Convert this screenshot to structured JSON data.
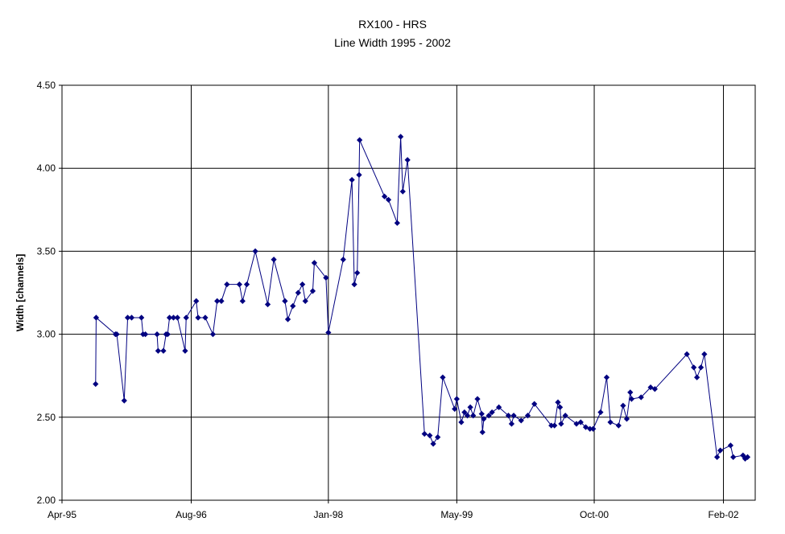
{
  "chart_data": {
    "type": "line",
    "title": "RX100 - HRS",
    "subtitle": "Line Width 1995 - 2002",
    "xlabel": "",
    "ylabel": "Width [channels]",
    "ylim": [
      2.0,
      4.5
    ],
    "yticks": [
      "2.00",
      "2.50",
      "3.00",
      "3.50",
      "4.00",
      "4.50"
    ],
    "xlim": [
      "1995-04-01",
      "2002-06-01"
    ],
    "xticks": [
      {
        "date": "1995-04-01",
        "label": "Apr-95"
      },
      {
        "date": "1996-08-01",
        "label": "Aug-96"
      },
      {
        "date": "1998-01-01",
        "label": "Jan-98"
      },
      {
        "date": "1999-05-01",
        "label": "May-99"
      },
      {
        "date": "2000-10-01",
        "label": "Oct-00"
      },
      {
        "date": "2002-02-01",
        "label": "Feb-02"
      }
    ],
    "grid": true,
    "legend": "none",
    "series_color": "#000080",
    "marker": "diamond",
    "points": [
      [
        "1995-08-06",
        2.7
      ],
      [
        "1995-08-08",
        3.1
      ],
      [
        "1995-10-20",
        3.0
      ],
      [
        "1995-10-25",
        3.0
      ],
      [
        "1995-11-22",
        2.6
      ],
      [
        "1995-12-05",
        3.1
      ],
      [
        "1995-12-20",
        3.1
      ],
      [
        "1996-01-26",
        3.1
      ],
      [
        "1996-02-01",
        3.0
      ],
      [
        "1996-02-10",
        3.0
      ],
      [
        "1996-03-25",
        3.0
      ],
      [
        "1996-03-29",
        2.9
      ],
      [
        "1996-04-18",
        2.9
      ],
      [
        "1996-04-28",
        3.0
      ],
      [
        "1996-05-04",
        3.0
      ],
      [
        "1996-05-11",
        3.1
      ],
      [
        "1996-05-26",
        3.1
      ],
      [
        "1996-06-10",
        3.1
      ],
      [
        "1996-07-09",
        2.9
      ],
      [
        "1996-07-13",
        3.1
      ],
      [
        "1996-08-20",
        3.2
      ],
      [
        "1996-08-27",
        3.1
      ],
      [
        "1996-09-23",
        3.1
      ],
      [
        "1996-10-22",
        3.0
      ],
      [
        "1996-11-07",
        3.2
      ],
      [
        "1996-11-23",
        3.2
      ],
      [
        "1996-12-14",
        3.3
      ],
      [
        "1997-01-30",
        3.3
      ],
      [
        "1997-02-11",
        3.2
      ],
      [
        "1997-02-27",
        3.3
      ],
      [
        "1997-03-31",
        3.5
      ],
      [
        "1997-05-17",
        3.18
      ],
      [
        "1997-06-09",
        3.45
      ],
      [
        "1997-07-21",
        3.2
      ],
      [
        "1997-08-01",
        3.09
      ],
      [
        "1997-08-20",
        3.17
      ],
      [
        "1997-09-09",
        3.25
      ],
      [
        "1997-09-25",
        3.3
      ],
      [
        "1997-10-06",
        3.2
      ],
      [
        "1997-11-03",
        3.26
      ],
      [
        "1997-11-09",
        3.43
      ],
      [
        "1997-12-23",
        3.34
      ],
      [
        "1998-01-01",
        3.01
      ],
      [
        "1998-02-26",
        3.45
      ],
      [
        "1998-03-31",
        3.93
      ],
      [
        "1998-04-09",
        3.3
      ],
      [
        "1998-04-20",
        3.37
      ],
      [
        "1998-04-27",
        3.96
      ],
      [
        "1998-04-29",
        4.17
      ],
      [
        "1998-08-01",
        3.83
      ],
      [
        "1998-08-16",
        3.81
      ],
      [
        "1998-09-18",
        3.67
      ],
      [
        "1998-10-01",
        4.19
      ],
      [
        "1998-10-09",
        3.86
      ],
      [
        "1998-10-27",
        4.05
      ],
      [
        "1998-12-30",
        2.4
      ],
      [
        "1999-01-19",
        2.39
      ],
      [
        "1999-02-01",
        2.34
      ],
      [
        "1999-02-18",
        2.38
      ],
      [
        "1999-03-09",
        2.74
      ],
      [
        "1999-04-23",
        2.55
      ],
      [
        "1999-05-01",
        2.61
      ],
      [
        "1999-05-18",
        2.47
      ],
      [
        "1999-05-30",
        2.53
      ],
      [
        "1999-06-10",
        2.51
      ],
      [
        "1999-06-21",
        2.56
      ],
      [
        "1999-07-02",
        2.51
      ],
      [
        "1999-07-18",
        2.61
      ],
      [
        "1999-08-03",
        2.52
      ],
      [
        "1999-08-06",
        2.41
      ],
      [
        "1999-08-11",
        2.49
      ],
      [
        "1999-08-30",
        2.51
      ],
      [
        "1999-09-11",
        2.53
      ],
      [
        "1999-10-07",
        2.56
      ],
      [
        "1999-11-12",
        2.51
      ],
      [
        "1999-11-24",
        2.46
      ],
      [
        "1999-12-02",
        2.51
      ],
      [
        "1999-12-30",
        2.48
      ],
      [
        "2000-01-24",
        2.51
      ],
      [
        "2000-02-18",
        2.58
      ],
      [
        "2000-04-22",
        2.45
      ],
      [
        "2000-05-04",
        2.45
      ],
      [
        "2000-05-17",
        2.59
      ],
      [
        "2000-05-25",
        2.56
      ],
      [
        "2000-05-29",
        2.46
      ],
      [
        "2000-06-14",
        2.51
      ],
      [
        "2000-07-26",
        2.46
      ],
      [
        "2000-08-11",
        2.47
      ],
      [
        "2000-08-30",
        2.44
      ],
      [
        "2000-09-15",
        2.43
      ],
      [
        "2000-09-27",
        2.43
      ],
      [
        "2000-10-25",
        2.53
      ],
      [
        "2000-11-17",
        2.74
      ],
      [
        "2000-12-01",
        2.47
      ],
      [
        "2001-01-01",
        2.45
      ],
      [
        "2001-01-18",
        2.57
      ],
      [
        "2001-02-01",
        2.49
      ],
      [
        "2001-02-14",
        2.65
      ],
      [
        "2001-02-19",
        2.61
      ],
      [
        "2001-03-27",
        2.62
      ],
      [
        "2001-05-02",
        2.68
      ],
      [
        "2001-05-18",
        2.67
      ],
      [
        "2001-09-16",
        2.88
      ],
      [
        "2001-10-12",
        2.8
      ],
      [
        "2001-10-24",
        2.74
      ],
      [
        "2001-11-08",
        2.8
      ],
      [
        "2001-11-21",
        2.88
      ],
      [
        "2002-01-08",
        2.26
      ],
      [
        "2002-01-20",
        2.3
      ],
      [
        "2002-02-28",
        2.33
      ],
      [
        "2002-03-10",
        2.26
      ],
      [
        "2002-04-16",
        2.27
      ],
      [
        "2002-04-24",
        2.25
      ],
      [
        "2002-05-03",
        2.26
      ]
    ]
  }
}
